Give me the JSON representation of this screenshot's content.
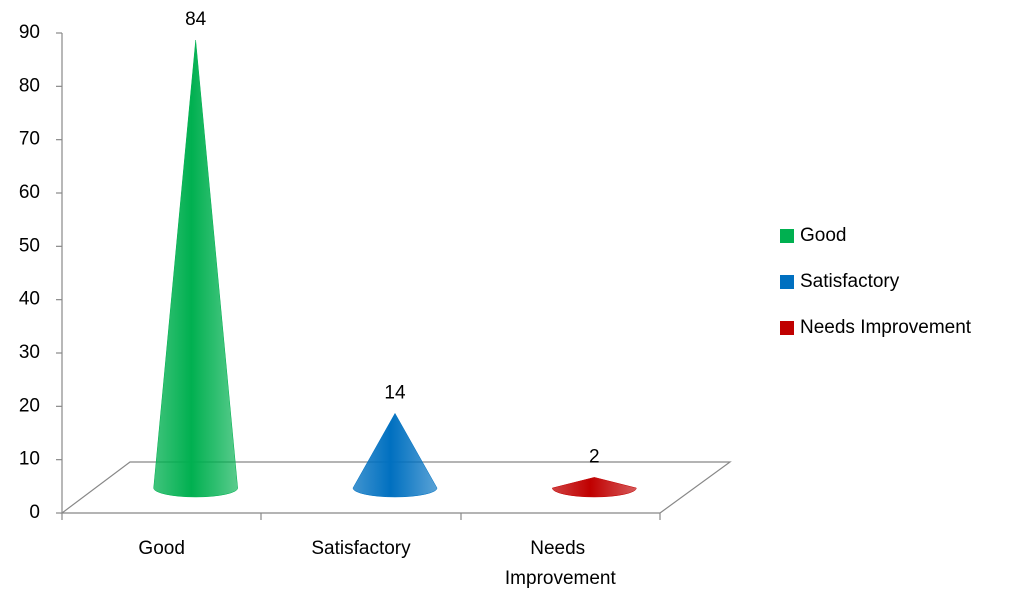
{
  "chart_data": {
    "type": "cone",
    "categories": [
      "Good",
      "Satisfactory",
      "Needs Improvement"
    ],
    "values": [
      84,
      14,
      2
    ],
    "colors": [
      "#00b050",
      "#0070c0",
      "#c00000"
    ],
    "ylim": [
      0,
      90
    ],
    "yticks": [
      0,
      10,
      20,
      30,
      40,
      50,
      60,
      70,
      80,
      90
    ],
    "legend": "right"
  }
}
